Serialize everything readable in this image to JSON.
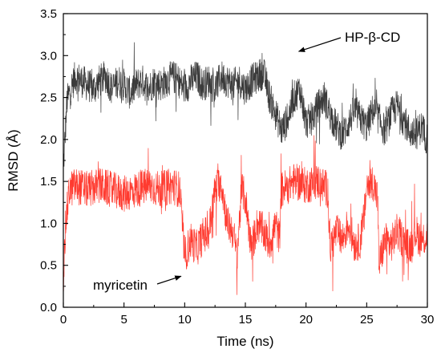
{
  "chart_data": {
    "type": "line",
    "title": "",
    "xlabel": "Time (ns)",
    "ylabel": "RMSD (Å)",
    "xlim": [
      0,
      30
    ],
    "ylim": [
      0,
      3.5
    ],
    "x_ticks": [
      0,
      5,
      10,
      15,
      20,
      25,
      30
    ],
    "x_tick_labels": [
      "0",
      "5",
      "10",
      "15",
      "20",
      "25",
      "30"
    ],
    "y_ticks": [
      0,
      0.5,
      1.0,
      1.5,
      2.0,
      2.5,
      3.0,
      3.5
    ],
    "y_tick_labels": [
      "0.0",
      "0.5",
      "1.0",
      "1.5",
      "2.0",
      "2.5",
      "3.0",
      "3.5"
    ],
    "grid": false,
    "legend": "none",
    "series": [
      {
        "name": "HP-β-CD",
        "color": "#3a3a3a",
        "x": [
          0,
          0.3,
          0.6,
          1,
          1.5,
          2,
          2.5,
          3,
          3.5,
          4,
          4.5,
          5,
          5.5,
          6,
          6.5,
          7,
          7.5,
          8,
          8.5,
          9,
          9.5,
          10,
          10.5,
          11,
          11.5,
          12,
          12.5,
          13,
          13.5,
          14,
          14.5,
          15,
          15.5,
          16,
          16.5,
          17,
          17.5,
          18,
          18.5,
          19,
          19.5,
          20,
          20.5,
          21,
          21.5,
          22,
          22.5,
          23,
          23.5,
          24,
          24.5,
          25,
          25.5,
          26,
          26.5,
          27,
          27.5,
          28,
          28.5,
          29,
          29.5,
          30
        ],
        "values": [
          1.65,
          2.45,
          2.6,
          2.75,
          2.7,
          2.65,
          2.6,
          2.7,
          2.75,
          2.6,
          2.7,
          2.65,
          2.55,
          2.65,
          2.7,
          2.6,
          2.7,
          2.65,
          2.7,
          2.75,
          2.7,
          2.6,
          2.7,
          2.75,
          2.65,
          2.7,
          2.6,
          2.75,
          2.7,
          2.65,
          2.7,
          2.6,
          2.7,
          2.75,
          2.8,
          2.5,
          2.3,
          2.1,
          2.25,
          2.5,
          2.6,
          2.2,
          2.25,
          2.4,
          2.5,
          2.3,
          2.15,
          2.05,
          2.2,
          2.35,
          2.25,
          2.15,
          2.35,
          2.25,
          2.1,
          2.3,
          2.4,
          2.25,
          2.1,
          2.05,
          2.15,
          2.0
        ],
        "noise": 0.2
      },
      {
        "name": "myricetin",
        "color": "#ff3b30",
        "x": [
          0,
          0.2,
          0.5,
          1,
          2,
          3,
          4,
          5,
          6,
          7,
          8,
          9,
          9.6,
          10,
          10.5,
          11,
          11.5,
          12,
          12.5,
          13,
          13.5,
          14,
          14.3,
          14.7,
          15,
          15.5,
          16,
          16.5,
          17,
          17.5,
          17.8,
          18,
          19,
          20,
          21,
          21.8,
          22,
          22.5,
          23,
          23.5,
          24,
          24.5,
          24.8,
          25,
          25.5,
          25.9,
          26,
          26.5,
          27,
          27.5,
          28,
          28.5,
          29,
          29.5,
          30
        ],
        "values": [
          0.3,
          1.0,
          1.4,
          1.45,
          1.4,
          1.45,
          1.4,
          1.35,
          1.4,
          1.45,
          1.4,
          1.45,
          1.4,
          0.6,
          0.8,
          0.7,
          0.85,
          0.9,
          1.4,
          1.5,
          1.0,
          0.9,
          0.6,
          1.4,
          1.3,
          0.7,
          1.0,
          0.9,
          0.75,
          1.0,
          0.8,
          1.4,
          1.5,
          1.45,
          1.5,
          1.4,
          0.7,
          0.9,
          0.8,
          1.0,
          0.75,
          0.8,
          1.1,
          1.45,
          1.5,
          1.3,
          0.5,
          0.8,
          0.75,
          0.9,
          0.8,
          0.7,
          0.9,
          0.8,
          0.85
        ],
        "noise": 0.22
      }
    ],
    "annotations": [
      {
        "text": "HP-β-CD",
        "series": "HP-β-CD",
        "x": 19.4,
        "y": 3.05
      },
      {
        "text": "myricetin",
        "series": "myricetin",
        "x": 9.7,
        "y": 0.37
      }
    ]
  }
}
